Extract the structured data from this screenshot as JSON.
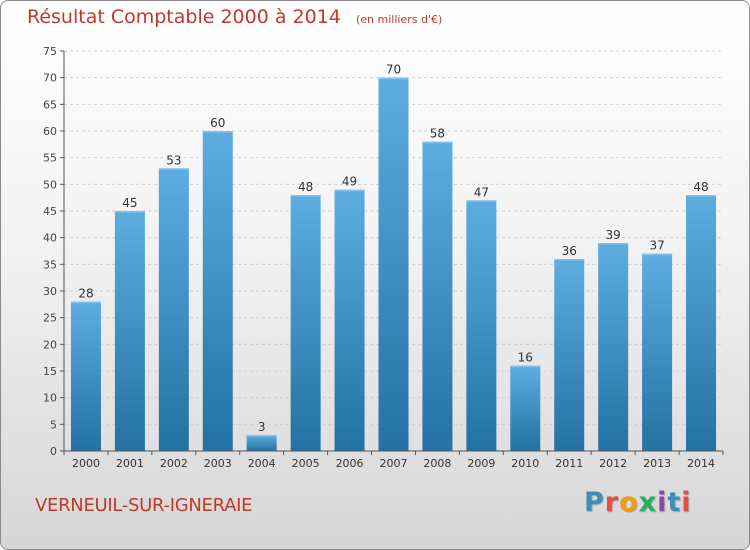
{
  "header": {
    "title": "Résultat Comptable 2000 à 2014",
    "unit": "(en milliers d'€)"
  },
  "footer": {
    "town": "VERNEUIL-SUR-IGNERAIE",
    "logo_text": "Proxiti"
  },
  "colors": {
    "title": "#c0392b",
    "bar_light": "#5dade2",
    "bar_dark": "#2e86c1",
    "logo_letters": [
      "#3c8dbc",
      "#e74c3c",
      "#f39c12",
      "#27ae60",
      "#8e44ad",
      "#3c8dbc",
      "#e74c3c"
    ]
  },
  "chart_data": {
    "type": "bar",
    "categories": [
      "2000",
      "2001",
      "2002",
      "2003",
      "2004",
      "2005",
      "2006",
      "2007",
      "2008",
      "2009",
      "2010",
      "2011",
      "2012",
      "2013",
      "2014"
    ],
    "values": [
      28,
      45,
      53,
      60,
      3,
      48,
      49,
      70,
      58,
      47,
      16,
      36,
      39,
      37,
      48
    ],
    "ylim": [
      0,
      75
    ],
    "yticks": [
      0,
      5,
      10,
      15,
      20,
      25,
      30,
      35,
      40,
      45,
      50,
      55,
      60,
      65,
      70,
      75
    ],
    "grid": true,
    "data_labels": true
  }
}
